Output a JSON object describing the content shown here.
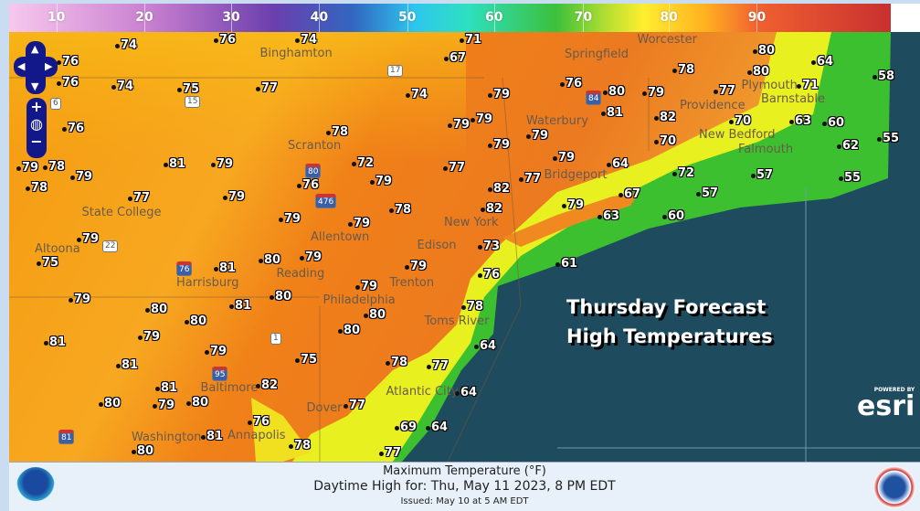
{
  "legend": {
    "labels": [
      "10",
      "20",
      "30",
      "40",
      "50",
      "60",
      "70",
      "80",
      "90"
    ],
    "colors": [
      "#f7c8ee",
      "#6b3fae",
      "#2ec6ee",
      "#3cc03c",
      "#ffee30",
      "#f06030",
      "#c83030"
    ]
  },
  "map": {
    "title_line1": "Thursday Forecast",
    "title_line2": "High Temperatures",
    "esri_powered": "POWERED BY",
    "esri_logo": "esri",
    "temperatures": [
      "74",
      "76",
      "74",
      "71",
      "76",
      "74",
      "75",
      "77",
      "76",
      "76",
      "74",
      "67",
      "79",
      "79",
      "79",
      "79",
      "79",
      "76",
      "80",
      "81",
      "78",
      "79",
      "82",
      "70",
      "80",
      "80",
      "64",
      "71",
      "77",
      "70",
      "63",
      "60",
      "58",
      "55",
      "62",
      "55",
      "57",
      "57",
      "72",
      "67",
      "60",
      "63",
      "64",
      "79",
      "77",
      "82",
      "82",
      "79",
      "78",
      "72",
      "79",
      "76",
      "77",
      "78",
      "79",
      "79",
      "79",
      "81",
      "79",
      "78",
      "78",
      "79",
      "77",
      "79",
      "79",
      "75",
      "79",
      "80",
      "81",
      "81",
      "80",
      "79",
      "80",
      "81",
      "80",
      "79",
      "79",
      "81",
      "82",
      "75",
      "80",
      "81",
      "79",
      "80",
      "76",
      "81",
      "80",
      "78",
      "73",
      "79",
      "79",
      "80",
      "80",
      "76",
      "78",
      "64",
      "78",
      "77",
      "64",
      "64",
      "69",
      "77",
      "77",
      "61"
    ],
    "cities": [
      "Binghamton",
      "Springfield",
      "Worcester",
      "Plymouth",
      "Providence",
      "Barnstable",
      "New Bedford",
      "Falmouth",
      "Waterbury",
      "Scranton",
      "Bridgeport",
      "State College",
      "New York",
      "Allentown",
      "Edison",
      "Altoona",
      "Harrisburg",
      "Reading",
      "Trenton",
      "Philadelphia",
      "Toms River",
      "Atlantic City",
      "Baltimore",
      "Dover",
      "Annapolis",
      "Washington"
    ],
    "shields": [
      "6",
      "15",
      "17",
      "22",
      "76",
      "1",
      "81",
      "476",
      "80",
      "84",
      "95"
    ],
    "controls": {
      "up": "▲",
      "down": "▼",
      "left": "◀",
      "right": "▶",
      "zoom_in": "+",
      "zoom_out": "−",
      "globe": "◍"
    }
  },
  "footer": {
    "line1": "Maximum Temperature (°F)",
    "line2": "Daytime High for: Thu, May 11 2023,   8 PM EDT",
    "line3": "Issued: May 10 at 5 AM EDT"
  }
}
